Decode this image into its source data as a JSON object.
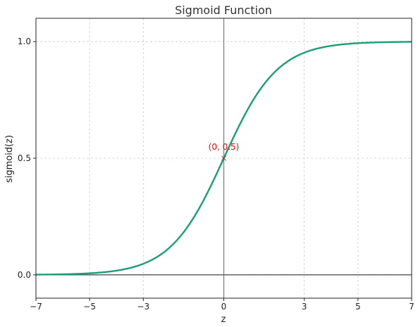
{
  "chart_data": {
    "type": "line",
    "title": "Sigmoid Function",
    "xlabel": "z",
    "ylabel": "sigmoid(z)",
    "xlim": [
      -7,
      7
    ],
    "ylim": [
      -0.1,
      1.1
    ],
    "xticks": [
      -7,
      -5,
      -3,
      0,
      3,
      5,
      7
    ],
    "xtick_labels": [
      "−7",
      "−5",
      "−3",
      "0",
      "3",
      "5",
      "7"
    ],
    "yticks": [
      0,
      0.5,
      1
    ],
    "ytick_labels": [
      "0.0",
      "0.5",
      "1.0"
    ],
    "grid": true,
    "series": [
      {
        "function": "sigmoid",
        "color": "#1a9e77",
        "x": [
          -7,
          -6,
          -5,
          -4,
          -3,
          -2,
          -1,
          0,
          1,
          2,
          3,
          4,
          5,
          6,
          7
        ],
        "y": [
          0.0009,
          0.0025,
          0.0067,
          0.018,
          0.0474,
          0.1192,
          0.2689,
          0.5,
          0.7311,
          0.8808,
          0.9526,
          0.982,
          0.9933,
          0.9975,
          0.9991
        ]
      }
    ],
    "reference_lines": [
      {
        "axis": "x",
        "value": 0,
        "color": "#808080"
      },
      {
        "axis": "y",
        "value": 0,
        "color": "#555555"
      }
    ],
    "annotations": [
      {
        "text": "(0, 0.5)",
        "x": 0,
        "y": 0.5,
        "marker": "×",
        "color": "#ff0000"
      }
    ]
  }
}
